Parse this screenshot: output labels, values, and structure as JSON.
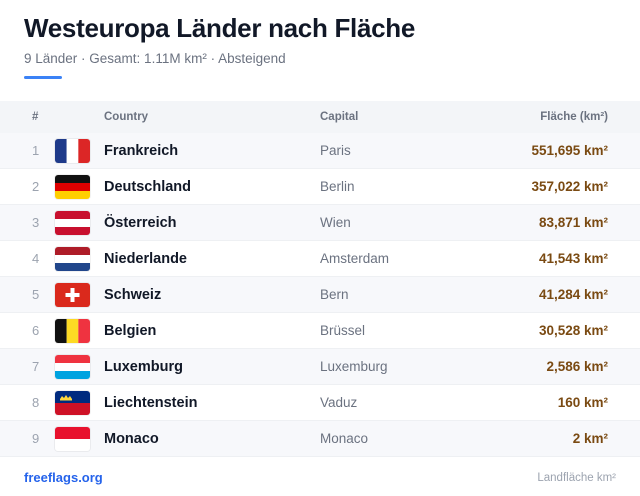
{
  "header": {
    "title": "Westeuropa Länder nach Fläche",
    "subtitle": "9 Länder · Gesamt: 1.11M km² · Absteigend"
  },
  "table": {
    "columns": {
      "rank": "#",
      "country": "Country",
      "capital": "Capital",
      "area": "Fläche (km²)"
    },
    "rows": [
      {
        "rank": "1",
        "flag": "france-flag-icon",
        "country": "Frankreich",
        "capital": "Paris",
        "area": "551,695 km²"
      },
      {
        "rank": "2",
        "flag": "germany-flag-icon",
        "country": "Deutschland",
        "capital": "Berlin",
        "area": "357,022 km²"
      },
      {
        "rank": "3",
        "flag": "austria-flag-icon",
        "country": "Österreich",
        "capital": "Wien",
        "area": "83,871 km²"
      },
      {
        "rank": "4",
        "flag": "netherlands-flag-icon",
        "country": "Niederlande",
        "capital": "Amsterdam",
        "area": "41,543 km²"
      },
      {
        "rank": "5",
        "flag": "switzerland-flag-icon",
        "country": "Schweiz",
        "capital": "Bern",
        "area": "41,284 km²"
      },
      {
        "rank": "6",
        "flag": "belgium-flag-icon",
        "country": "Belgien",
        "capital": "Brüssel",
        "area": "30,528 km²"
      },
      {
        "rank": "7",
        "flag": "luxembourg-flag-icon",
        "country": "Luxemburg",
        "capital": "Luxemburg",
        "area": "2,586 km²"
      },
      {
        "rank": "8",
        "flag": "liechtenstein-flag-icon",
        "country": "Liechtenstein",
        "capital": "Vaduz",
        "area": "160 km²"
      },
      {
        "rank": "9",
        "flag": "monaco-flag-icon",
        "country": "Monaco",
        "capital": "Monaco",
        "area": "2 km²"
      }
    ]
  },
  "footer": {
    "link": "freeflags.org",
    "note": "Landfläche km²"
  },
  "colors": {
    "accent": "#3b82f6",
    "area_text": "#7a4a12",
    "link": "#2563eb"
  }
}
